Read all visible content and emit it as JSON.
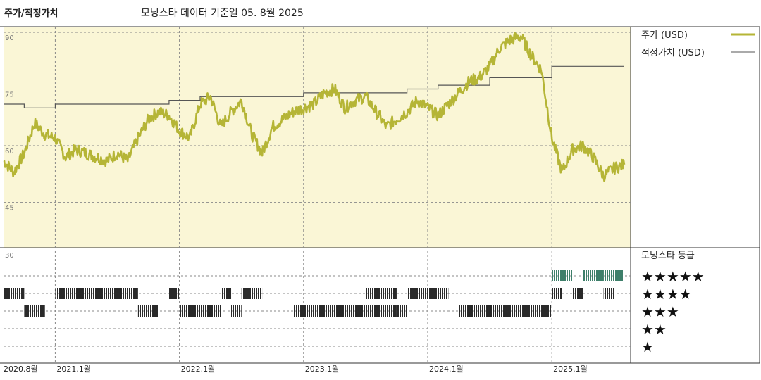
{
  "header": {
    "title": "주가/적정가치",
    "subtitle": "모닝스타 데이터 기준일 05. 8월 2025"
  },
  "legend": {
    "price_label": "주가 (USD)",
    "fair_label": "적정가치 (USD)",
    "rating_title": "모닝스타 등급",
    "stars": [
      "★★★★★",
      "★★★★",
      "★★★",
      "★★",
      "★"
    ]
  },
  "colors": {
    "price": "#b5b536",
    "fair": "#555555",
    "panel_bg": "#faf6d6",
    "rating_bar": "#2a2a2a",
    "rating_5star": "#3e7f6a"
  },
  "chart_data": [
    {
      "type": "line",
      "title": "",
      "xlabel": "",
      "ylabel": "",
      "y_ticks": [
        90,
        75,
        60,
        45
      ],
      "ylim": [
        33,
        90
      ],
      "x_tick_labels": [
        "2020.8월",
        "2021.1월",
        "2022.1월",
        "2023.1월",
        "2024.1월",
        "2025.1월"
      ],
      "x_tick_dates": [
        "2020-08",
        "2021-01",
        "2022-01",
        "2023-01",
        "2024-01",
        "2025-01"
      ],
      "grid": true,
      "series": [
        {
          "name": "주가 (USD)",
          "x": [
            "2020-08",
            "2020-09",
            "2020-10",
            "2020-11",
            "2020-12",
            "2021-01",
            "2021-02",
            "2021-03",
            "2021-04",
            "2021-05",
            "2021-06",
            "2021-07",
            "2021-08",
            "2021-09",
            "2021-10",
            "2021-11",
            "2021-12",
            "2022-01",
            "2022-02",
            "2022-03",
            "2022-04",
            "2022-05",
            "2022-06",
            "2022-07",
            "2022-08",
            "2022-09",
            "2022-10",
            "2022-11",
            "2022-12",
            "2023-01",
            "2023-02",
            "2023-03",
            "2023-04",
            "2023-05",
            "2023-06",
            "2023-07",
            "2023-08",
            "2023-09",
            "2023-10",
            "2023-11",
            "2023-12",
            "2024-01",
            "2024-02",
            "2024-03",
            "2024-04",
            "2024-05",
            "2024-06",
            "2024-07",
            "2024-08",
            "2024-09",
            "2024-10",
            "2024-11",
            "2024-12",
            "2025-01",
            "2025-02",
            "2025-03",
            "2025-04",
            "2025-05",
            "2025-06",
            "2025-07",
            "2025-08"
          ],
          "values": [
            56,
            53,
            58,
            66,
            63,
            62,
            57,
            59,
            58,
            57,
            56,
            58,
            56,
            62,
            67,
            69,
            68,
            64,
            62,
            71,
            73,
            65,
            69,
            72,
            63,
            58,
            65,
            67,
            69,
            70,
            71,
            74,
            75,
            70,
            72,
            73,
            69,
            65,
            67,
            69,
            72,
            70,
            68,
            71,
            74,
            77,
            78,
            81,
            86,
            88,
            89,
            84,
            80,
            62,
            53,
            59,
            60,
            57,
            52,
            54,
            55
          ]
        },
        {
          "name": "적정가치 (USD)",
          "x": [
            "2020-08",
            "2020-10",
            "2021-01",
            "2021-12",
            "2022-03",
            "2022-07",
            "2022-12",
            "2023-01",
            "2023-09",
            "2023-11",
            "2024-02",
            "2024-07",
            "2025-01",
            "2025-08"
          ],
          "values": [
            71,
            70,
            71,
            72,
            73,
            73,
            73,
            74,
            74,
            75,
            76,
            78,
            81,
            81
          ]
        }
      ]
    },
    {
      "type": "table",
      "title": "모닝스타 등급",
      "y_ticks": [
        30
      ],
      "rows": [
        "★★★★★",
        "★★★★",
        "★★★",
        "★★",
        "★"
      ],
      "segments": [
        {
          "rating": 4,
          "start": "2020-08",
          "end": "2020-10"
        },
        {
          "rating": 3,
          "start": "2020-10",
          "end": "2020-12"
        },
        {
          "rating": 4,
          "start": "2021-01",
          "end": "2021-09"
        },
        {
          "rating": 3,
          "start": "2021-09",
          "end": "2021-11"
        },
        {
          "rating": 4,
          "start": "2021-12",
          "end": "2022-01"
        },
        {
          "rating": 3,
          "start": "2022-01",
          "end": "2022-05"
        },
        {
          "rating": 4,
          "start": "2022-05",
          "end": "2022-06"
        },
        {
          "rating": 3,
          "start": "2022-06",
          "end": "2022-07"
        },
        {
          "rating": 4,
          "start": "2022-07",
          "end": "2022-09"
        },
        {
          "rating": 3,
          "start": "2022-12",
          "end": "2023-10"
        },
        {
          "rating": 4,
          "start": "2023-07",
          "end": "2023-10"
        },
        {
          "rating": 3,
          "start": "2023-10",
          "end": "2023-11"
        },
        {
          "rating": 4,
          "start": "2023-11",
          "end": "2024-03"
        },
        {
          "rating": 3,
          "start": "2024-04",
          "end": "2025-01"
        },
        {
          "rating": 4,
          "start": "2025-01",
          "end": "2025-02"
        },
        {
          "rating": 5,
          "start": "2025-01",
          "end": "2025-03"
        },
        {
          "rating": 4,
          "start": "2025-03",
          "end": "2025-04"
        },
        {
          "rating": 5,
          "start": "2025-04",
          "end": "2025-06"
        },
        {
          "rating": 4,
          "start": "2025-06",
          "end": "2025-07"
        },
        {
          "rating": 5,
          "start": "2025-06",
          "end": "2025-08"
        }
      ]
    }
  ]
}
